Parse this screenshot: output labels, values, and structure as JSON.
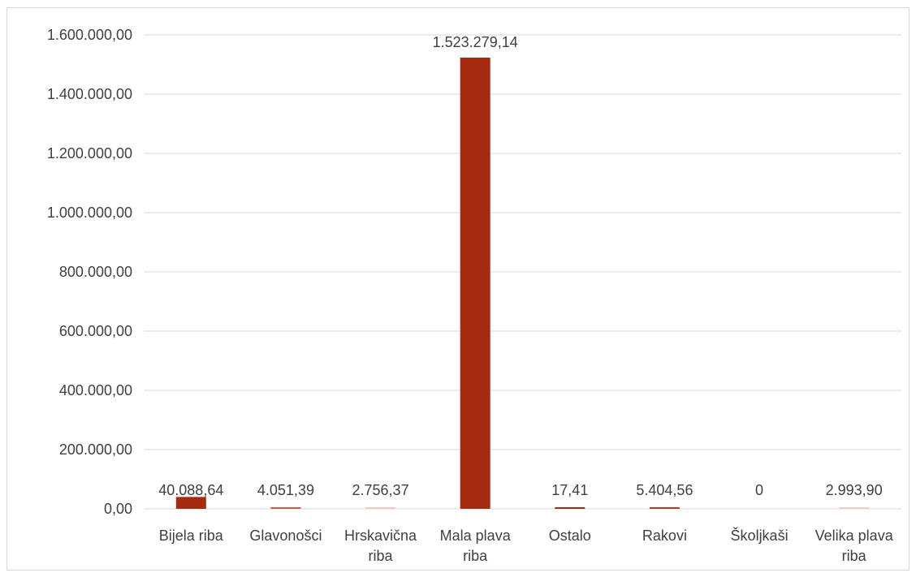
{
  "chart_data": {
    "type": "bar",
    "title": "",
    "xlabel": "",
    "ylabel": "",
    "categories": [
      [
        "Bijela riba"
      ],
      [
        "Glavonošci"
      ],
      [
        "Hrskavična",
        "riba"
      ],
      [
        "Mala plava",
        "riba"
      ],
      [
        "Ostalo"
      ],
      [
        "Rakovi"
      ],
      [
        "Školjkaši"
      ],
      [
        "Velika plava",
        "riba"
      ]
    ],
    "values": [
      40088.64,
      4051.39,
      2756.37,
      1523279.14,
      17.41,
      5404.56,
      0,
      2993.9
    ],
    "data_labels": [
      "40.088,64",
      "4.051,39",
      "2.756,37",
      "1.523.279,14",
      "17,41",
      "5.404,56",
      "0",
      "2.993,90"
    ],
    "ylim": [
      0,
      1600000
    ],
    "yticks": [
      0,
      200000,
      400000,
      600000,
      800000,
      1000000,
      1200000,
      1400000,
      1600000
    ],
    "ytick_labels": [
      "0,00",
      "200.000,00",
      "400.000,00",
      "600.000,00",
      "800.000,00",
      "1.000.000,00",
      "1.200.000,00",
      "1.400.000,00",
      "1.600.000,00"
    ],
    "grid": true,
    "legend": "none",
    "colors": {
      "bar": "#a52a0f",
      "grid": "#d9d9d9",
      "text": "#404040",
      "small_bars": [
        "#a52a0f",
        "#d9543a",
        "#f2c8c0",
        "#a52a0f",
        "#a52a0f",
        "#c0391b",
        "#a52a0f",
        "#f4cfc8"
      ]
    }
  }
}
